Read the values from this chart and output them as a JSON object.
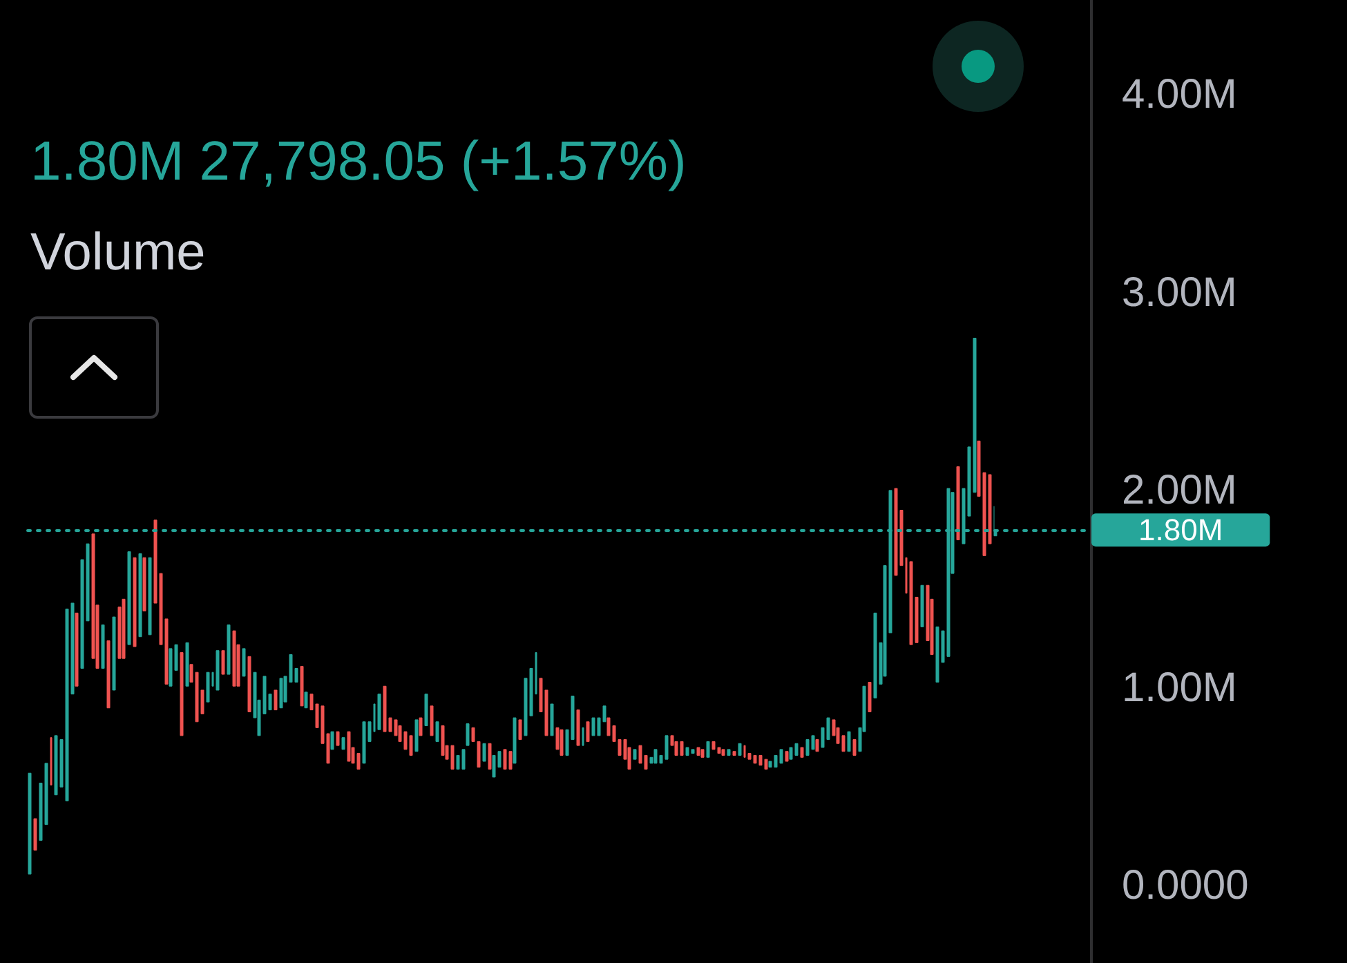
{
  "chart_data": {
    "type": "candlestick",
    "subtitle": "1.80M 27,798.05 (+1.57%)",
    "annotations": [
      "Volume"
    ],
    "categories": [
      null,
      null,
      null,
      null,
      null,
      null,
      null,
      null,
      null,
      null,
      null,
      null,
      null,
      null,
      null,
      null,
      null,
      null,
      null,
      null,
      null,
      null,
      null,
      null,
      null,
      null,
      null,
      null,
      null,
      null,
      null,
      null,
      null,
      null,
      null,
      null,
      null,
      null,
      null,
      null,
      null,
      null,
      null,
      null,
      null,
      null,
      null,
      null,
      null,
      null,
      null,
      null,
      null,
      null,
      null,
      null,
      null,
      null,
      null,
      null,
      null,
      null,
      null,
      null,
      null,
      null,
      null,
      null,
      null,
      null,
      null,
      null,
      null,
      null,
      null,
      null,
      null,
      null,
      null,
      null,
      null,
      null,
      null,
      null,
      null,
      null,
      null,
      null,
      null,
      null,
      null,
      null,
      null,
      null,
      null,
      null,
      null,
      null,
      null,
      null,
      null,
      null,
      null,
      null,
      null,
      null,
      null,
      null,
      null,
      null,
      null,
      null,
      null,
      null,
      null,
      null,
      null,
      null,
      null,
      null,
      null,
      null,
      null,
      null,
      null,
      null,
      null,
      null,
      null,
      null,
      null,
      null,
      null,
      null,
      null,
      null,
      null,
      null,
      null,
      null,
      null,
      null,
      null,
      null,
      null,
      null,
      null,
      null,
      null,
      null,
      null,
      null,
      null,
      null,
      null,
      null,
      null,
      null,
      null,
      null,
      null,
      null,
      null,
      null,
      null,
      null,
      null,
      null,
      null,
      null,
      null,
      null,
      null,
      null,
      null,
      null,
      null,
      null,
      null,
      null,
      null,
      null,
      null,
      null,
      null,
      null,
      null,
      null,
      null,
      null,
      null,
      null,
      null,
      null,
      null,
      null,
      null,
      null,
      null,
      null,
      null,
      null,
      null,
      null
    ],
    "ohlc": [
      [
        0.06,
        0.57,
        0.06,
        0.57
      ],
      [
        0.34,
        0.34,
        0.18,
        0.18
      ],
      [
        0.23,
        0.52,
        0.23,
        0.52
      ],
      [
        0.31,
        0.62,
        0.31,
        0.62
      ],
      [
        0.75,
        0.75,
        0.51,
        0.51
      ],
      [
        0.46,
        0.76,
        0.46,
        0.76
      ],
      [
        0.5,
        0.74,
        0.5,
        0.74
      ],
      [
        0.43,
        1.4,
        0.43,
        1.4
      ],
      [
        0.97,
        1.43,
        0.97,
        1.43
      ],
      [
        1.38,
        1.38,
        1.01,
        1.01
      ],
      [
        1.1,
        1.65,
        1.1,
        1.65
      ],
      [
        1.34,
        1.73,
        1.34,
        1.73
      ],
      [
        1.78,
        1.78,
        1.15,
        1.15
      ],
      [
        1.42,
        1.42,
        1.1,
        1.1
      ],
      [
        1.1,
        1.32,
        1.1,
        1.32
      ],
      [
        1.24,
        1.24,
        0.9,
        0.9
      ],
      [
        0.99,
        1.36,
        0.99,
        1.36
      ],
      [
        1.41,
        1.41,
        1.15,
        1.15
      ],
      [
        1.45,
        1.45,
        1.15,
        1.15
      ],
      [
        1.22,
        1.69,
        1.22,
        1.69
      ],
      [
        1.66,
        1.66,
        1.21,
        1.21
      ],
      [
        1.26,
        1.68,
        1.26,
        1.68
      ],
      [
        1.66,
        1.66,
        1.39,
        1.39
      ],
      [
        1.27,
        1.66,
        1.27,
        1.66
      ],
      [
        1.85,
        1.85,
        1.43,
        1.43
      ],
      [
        1.58,
        1.58,
        1.22,
        1.22
      ],
      [
        1.35,
        1.35,
        1.02,
        1.02
      ],
      [
        1.01,
        1.2,
        1.01,
        1.2
      ],
      [
        1.09,
        1.22,
        1.09,
        1.22
      ],
      [
        1.18,
        1.18,
        0.76,
        0.76
      ],
      [
        1.01,
        1.23,
        1.01,
        1.23
      ],
      [
        1.12,
        1.12,
        1.03,
        1.03
      ],
      [
        1.08,
        1.08,
        0.83,
        0.83
      ],
      [
        0.99,
        0.99,
        0.87,
        0.87
      ],
      [
        0.93,
        1.08,
        0.93,
        1.08
      ],
      [
        1.01,
        1.08,
        1.01,
        1.08
      ],
      [
        0.99,
        1.19,
        0.99,
        1.19
      ],
      [
        1.19,
        1.19,
        1.07,
        1.07
      ],
      [
        1.07,
        1.32,
        1.07,
        1.32
      ],
      [
        1.29,
        1.29,
        1.01,
        1.01
      ],
      [
        1.22,
        1.22,
        1.01,
        1.01
      ],
      [
        1.06,
        1.2,
        1.06,
        1.2
      ],
      [
        1.16,
        1.16,
        0.88,
        0.88
      ],
      [
        0.85,
        1.08,
        0.85,
        1.08
      ],
      [
        0.76,
        0.94,
        0.76,
        0.94
      ],
      [
        0.87,
        1.06,
        0.87,
        1.06
      ],
      [
        0.89,
        0.97,
        0.89,
        0.97
      ],
      [
        0.99,
        0.99,
        0.89,
        0.89
      ],
      [
        0.9,
        1.05,
        0.9,
        1.05
      ],
      [
        0.93,
        1.06,
        0.93,
        1.06
      ],
      [
        1.03,
        1.17,
        1.03,
        1.17
      ],
      [
        1.03,
        1.1,
        1.03,
        1.1
      ],
      [
        1.11,
        1.11,
        0.91,
        0.91
      ],
      [
        0.9,
        0.98,
        0.9,
        0.98
      ],
      [
        0.97,
        0.97,
        0.89,
        0.89
      ],
      [
        0.92,
        0.92,
        0.8,
        0.8
      ],
      [
        0.91,
        0.91,
        0.72,
        0.72
      ],
      [
        0.77,
        0.77,
        0.62,
        0.62
      ],
      [
        0.69,
        0.78,
        0.69,
        0.78
      ],
      [
        0.78,
        0.78,
        0.71,
        0.71
      ],
      [
        0.69,
        0.75,
        0.69,
        0.75
      ],
      [
        0.78,
        0.78,
        0.63,
        0.63
      ],
      [
        0.7,
        0.7,
        0.62,
        0.62
      ],
      [
        0.67,
        0.67,
        0.59,
        0.59
      ],
      [
        0.62,
        0.83,
        0.62,
        0.83
      ],
      [
        0.73,
        0.83,
        0.73,
        0.83
      ],
      [
        0.78,
        0.92,
        0.78,
        0.92
      ],
      [
        0.79,
        0.97,
        0.79,
        0.97
      ],
      [
        1.01,
        1.01,
        0.78,
        0.78
      ],
      [
        0.85,
        0.85,
        0.78,
        0.78
      ],
      [
        0.84,
        0.84,
        0.76,
        0.76
      ],
      [
        0.81,
        0.81,
        0.73,
        0.73
      ],
      [
        0.78,
        0.78,
        0.69,
        0.69
      ],
      [
        0.76,
        0.76,
        0.66,
        0.66
      ],
      [
        0.68,
        0.84,
        0.68,
        0.84
      ],
      [
        0.85,
        0.85,
        0.76,
        0.76
      ],
      [
        0.81,
        0.97,
        0.81,
        0.97
      ],
      [
        0.91,
        0.91,
        0.76,
        0.76
      ],
      [
        0.73,
        0.83,
        0.73,
        0.83
      ],
      [
        0.81,
        0.81,
        0.66,
        0.66
      ],
      [
        0.71,
        0.71,
        0.64,
        0.64
      ],
      [
        0.71,
        0.71,
        0.59,
        0.59
      ],
      [
        0.59,
        0.66,
        0.59,
        0.66
      ],
      [
        0.59,
        0.69,
        0.59,
        0.69
      ],
      [
        0.71,
        0.82,
        0.71,
        0.82
      ],
      [
        0.8,
        0.8,
        0.73,
        0.73
      ],
      [
        0.73,
        0.73,
        0.6,
        0.6
      ],
      [
        0.63,
        0.72,
        0.63,
        0.72
      ],
      [
        0.72,
        0.72,
        0.59,
        0.59
      ],
      [
        0.55,
        0.66,
        0.55,
        0.66
      ],
      [
        0.6,
        0.68,
        0.6,
        0.68
      ],
      [
        0.69,
        0.69,
        0.59,
        0.59
      ],
      [
        0.68,
        0.68,
        0.59,
        0.59
      ],
      [
        0.62,
        0.85,
        0.62,
        0.85
      ],
      [
        0.84,
        0.84,
        0.74,
        0.74
      ],
      [
        0.76,
        1.05,
        0.76,
        1.05
      ],
      [
        0.86,
        1.1,
        0.86,
        1.1
      ],
      [
        0.97,
        1.18,
        0.97,
        1.18
      ],
      [
        1.05,
        1.05,
        0.88,
        0.88
      ],
      [
        0.99,
        0.99,
        0.76,
        0.76
      ],
      [
        0.76,
        0.92,
        0.76,
        0.92
      ],
      [
        0.8,
        0.8,
        0.69,
        0.69
      ],
      [
        0.79,
        0.79,
        0.66,
        0.66
      ],
      [
        0.66,
        0.79,
        0.66,
        0.79
      ],
      [
        0.74,
        0.96,
        0.74,
        0.96
      ],
      [
        0.89,
        0.89,
        0.71,
        0.71
      ],
      [
        0.71,
        0.8,
        0.71,
        0.8
      ],
      [
        0.83,
        0.83,
        0.73,
        0.73
      ],
      [
        0.76,
        0.85,
        0.76,
        0.85
      ],
      [
        0.76,
        0.85,
        0.76,
        0.85
      ],
      [
        0.83,
        0.91,
        0.83,
        0.91
      ],
      [
        0.85,
        0.85,
        0.76,
        0.76
      ],
      [
        0.81,
        0.81,
        0.73,
        0.73
      ],
      [
        0.74,
        0.74,
        0.66,
        0.66
      ],
      [
        0.74,
        0.74,
        0.64,
        0.64
      ],
      [
        0.7,
        0.7,
        0.59,
        0.59
      ],
      [
        0.64,
        0.69,
        0.64,
        0.69
      ],
      [
        0.71,
        0.71,
        0.62,
        0.62
      ],
      [
        0.66,
        0.66,
        0.59,
        0.59
      ],
      [
        0.62,
        0.65,
        0.62,
        0.65
      ],
      [
        0.62,
        0.69,
        0.62,
        0.69
      ],
      [
        0.62,
        0.66,
        0.62,
        0.66
      ],
      [
        0.64,
        0.76,
        0.64,
        0.76
      ],
      [
        0.76,
        0.76,
        0.71,
        0.71
      ],
      [
        0.73,
        0.73,
        0.66,
        0.66
      ],
      [
        0.73,
        0.73,
        0.66,
        0.66
      ],
      [
        0.66,
        0.7,
        0.66,
        0.7
      ],
      [
        0.67,
        0.69,
        0.67,
        0.69
      ],
      [
        0.7,
        0.7,
        0.66,
        0.66
      ],
      [
        0.69,
        0.69,
        0.65,
        0.65
      ],
      [
        0.65,
        0.73,
        0.65,
        0.73
      ],
      [
        0.73,
        0.73,
        0.69,
        0.69
      ],
      [
        0.7,
        0.7,
        0.67,
        0.67
      ],
      [
        0.69,
        0.69,
        0.66,
        0.66
      ],
      [
        0.66,
        0.69,
        0.66,
        0.69
      ],
      [
        0.68,
        0.68,
        0.66,
        0.66
      ],
      [
        0.66,
        0.72,
        0.66,
        0.72
      ],
      [
        0.71,
        0.71,
        0.65,
        0.65
      ],
      [
        0.67,
        0.67,
        0.64,
        0.64
      ],
      [
        0.66,
        0.66,
        0.62,
        0.62
      ],
      [
        0.66,
        0.66,
        0.61,
        0.61
      ],
      [
        0.64,
        0.64,
        0.59,
        0.59
      ],
      [
        0.6,
        0.63,
        0.6,
        0.63
      ],
      [
        0.6,
        0.66,
        0.6,
        0.66
      ],
      [
        0.62,
        0.69,
        0.62,
        0.69
      ],
      [
        0.68,
        0.68,
        0.63,
        0.63
      ],
      [
        0.64,
        0.7,
        0.64,
        0.7
      ],
      [
        0.66,
        0.72,
        0.66,
        0.72
      ],
      [
        0.7,
        0.7,
        0.65,
        0.65
      ],
      [
        0.66,
        0.74,
        0.66,
        0.74
      ],
      [
        0.69,
        0.76,
        0.69,
        0.76
      ],
      [
        0.74,
        0.74,
        0.68,
        0.68
      ],
      [
        0.7,
        0.8,
        0.7,
        0.8
      ],
      [
        0.74,
        0.85,
        0.74,
        0.85
      ],
      [
        0.84,
        0.84,
        0.76,
        0.76
      ],
      [
        0.8,
        0.8,
        0.72,
        0.72
      ],
      [
        0.76,
        0.76,
        0.68,
        0.68
      ],
      [
        0.68,
        0.78,
        0.68,
        0.78
      ],
      [
        0.74,
        0.74,
        0.66,
        0.66
      ],
      [
        0.68,
        0.8,
        0.68,
        0.8
      ],
      [
        0.78,
        1.01,
        0.78,
        1.01
      ],
      [
        1.03,
        1.03,
        0.88,
        0.88
      ],
      [
        0.95,
        1.38,
        0.95,
        1.38
      ],
      [
        1.02,
        1.23,
        1.02,
        1.23
      ],
      [
        1.06,
        1.62,
        1.06,
        1.62
      ],
      [
        1.28,
        2.0,
        1.28,
        2.0
      ],
      [
        2.01,
        2.01,
        1.57,
        1.57
      ],
      [
        1.9,
        1.9,
        1.62,
        1.62
      ],
      [
        1.66,
        1.66,
        1.48,
        1.48
      ],
      [
        1.64,
        1.64,
        1.22,
        1.22
      ],
      [
        1.46,
        1.46,
        1.23,
        1.23
      ],
      [
        1.31,
        1.52,
        1.31,
        1.52
      ],
      [
        1.52,
        1.52,
        1.24,
        1.24
      ],
      [
        1.45,
        1.45,
        1.17,
        1.17
      ],
      [
        1.03,
        1.31,
        1.03,
        1.31
      ],
      [
        1.13,
        1.29,
        1.13,
        1.29
      ],
      [
        1.16,
        2.01,
        1.16,
        2.01
      ],
      [
        1.58,
        1.99,
        1.58,
        1.99
      ],
      [
        2.12,
        2.12,
        1.75,
        1.75
      ],
      [
        1.73,
        2.01,
        1.73,
        2.01
      ],
      [
        1.87,
        2.22,
        1.87,
        2.22
      ],
      [
        1.99,
        2.77,
        1.99,
        2.77
      ],
      [
        2.25,
        2.25,
        1.97,
        1.97
      ],
      [
        2.09,
        2.09,
        1.67,
        1.67
      ],
      [
        2.08,
        2.08,
        1.73,
        1.73
      ],
      [
        1.77,
        1.92,
        1.77,
        1.8
      ],
      null,
      null,
      null,
      null,
      null,
      null,
      null,
      null,
      null,
      null,
      null,
      null,
      null,
      null,
      null,
      null,
      null,
      null
    ],
    "colors": [
      "#26a69a",
      "#ef5350",
      "#26a69a",
      "#26a69a",
      "#ef5350",
      "#26a69a",
      "#26a69a",
      "#26a69a",
      "#26a69a",
      "#ef5350",
      "#26a69a",
      "#26a69a",
      "#ef5350",
      "#ef5350",
      "#26a69a",
      "#ef5350",
      "#26a69a",
      "#ef5350",
      "#ef5350",
      "#26a69a",
      "#ef5350",
      "#26a69a",
      "#ef5350",
      "#26a69a",
      "#ef5350",
      "#ef5350",
      "#ef5350",
      "#26a69a",
      "#26a69a",
      "#ef5350",
      "#26a69a",
      "#ef5350",
      "#ef5350",
      "#ef5350",
      "#26a69a",
      "#26a69a",
      "#26a69a",
      "#ef5350",
      "#26a69a",
      "#ef5350",
      "#ef5350",
      "#26a69a",
      "#ef5350",
      "#26a69a",
      "#26a69a",
      "#26a69a",
      "#26a69a",
      "#ef5350",
      "#26a69a",
      "#26a69a",
      "#26a69a",
      "#26a69a",
      "#ef5350",
      "#26a69a",
      "#ef5350",
      "#ef5350",
      "#ef5350",
      "#ef5350",
      "#26a69a",
      "#ef5350",
      "#26a69a",
      "#ef5350",
      "#ef5350",
      "#ef5350",
      "#26a69a",
      "#26a69a",
      "#26a69a",
      "#26a69a",
      "#ef5350",
      "#ef5350",
      "#ef5350",
      "#ef5350",
      "#ef5350",
      "#ef5350",
      "#26a69a",
      "#ef5350",
      "#26a69a",
      "#ef5350",
      "#26a69a",
      "#ef5350",
      "#ef5350",
      "#ef5350",
      "#26a69a",
      "#26a69a",
      "#26a69a",
      "#ef5350",
      "#ef5350",
      "#26a69a",
      "#ef5350",
      "#26a69a",
      "#26a69a",
      "#ef5350",
      "#ef5350",
      "#26a69a",
      "#ef5350",
      "#26a69a",
      "#26a69a",
      "#26a69a",
      "#ef5350",
      "#ef5350",
      "#26a69a",
      "#ef5350",
      "#ef5350",
      "#26a69a",
      "#26a69a",
      "#ef5350",
      "#26a69a",
      "#ef5350",
      "#26a69a",
      "#26a69a",
      "#26a69a",
      "#ef5350",
      "#ef5350",
      "#ef5350",
      "#ef5350",
      "#ef5350",
      "#26a69a",
      "#ef5350",
      "#ef5350",
      "#26a69a",
      "#26a69a",
      "#26a69a",
      "#26a69a",
      "#ef5350",
      "#ef5350",
      "#ef5350",
      "#26a69a",
      "#26a69a",
      "#ef5350",
      "#ef5350",
      "#26a69a",
      "#ef5350",
      "#ef5350",
      "#ef5350",
      "#26a69a",
      "#ef5350",
      "#26a69a",
      "#ef5350",
      "#ef5350",
      "#ef5350",
      "#ef5350",
      "#ef5350",
      "#26a69a",
      "#26a69a",
      "#26a69a",
      "#ef5350",
      "#26a69a",
      "#26a69a",
      "#ef5350",
      "#26a69a",
      "#26a69a",
      "#ef5350",
      "#26a69a",
      "#26a69a",
      "#ef5350",
      "#ef5350",
      "#ef5350",
      "#26a69a",
      "#ef5350",
      "#26a69a",
      "#26a69a",
      "#ef5350",
      "#26a69a",
      "#26a69a",
      "#26a69a",
      "#26a69a",
      "#ef5350",
      "#ef5350",
      "#ef5350",
      "#ef5350",
      "#ef5350",
      "#26a69a",
      "#ef5350",
      "#ef5350",
      "#26a69a",
      "#26a69a",
      "#26a69a",
      "#26a69a",
      "#ef5350",
      "#26a69a",
      "#26a69a",
      "#26a69a",
      "#ef5350",
      "#ef5350",
      "#ef5350",
      "#26a69a",
      null,
      null,
      null,
      null,
      null,
      null,
      null,
      null,
      null,
      null,
      null,
      null,
      null,
      null,
      null,
      null,
      null,
      null
    ],
    "ylim": [
      -0.39,
      4.48
    ],
    "yticks": [
      {
        "value": 0,
        "label": "0.0000"
      },
      {
        "value": 1,
        "label": "1.00M"
      },
      {
        "value": 2,
        "label": "2.00M"
      },
      {
        "value": 3,
        "label": "3.00M"
      },
      {
        "value": 4,
        "label": "4.00M"
      }
    ],
    "tick_labels": "y",
    "ref_lines": [
      {
        "axis": "y",
        "value": 1.8,
        "label": "1.80M",
        "color": "#26a69a",
        "line_style": "dotted"
      }
    ]
  }
}
